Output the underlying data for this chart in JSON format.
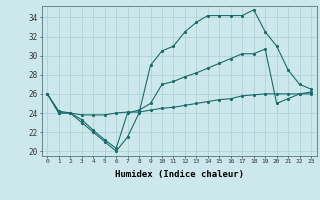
{
  "xlabel": "Humidex (Indice chaleur)",
  "bg_color": "#cce8ec",
  "grid_color": "#aacfd4",
  "line_color": "#1a6b6b",
  "xlim": [
    -0.5,
    23.5
  ],
  "ylim": [
    19.5,
    35.2
  ],
  "xticks": [
    0,
    1,
    2,
    3,
    4,
    5,
    6,
    7,
    8,
    9,
    10,
    11,
    12,
    13,
    14,
    15,
    16,
    17,
    18,
    19,
    20,
    21,
    22,
    23
  ],
  "yticks": [
    20,
    22,
    24,
    26,
    28,
    30,
    32,
    34
  ],
  "series2_x": [
    0,
    1,
    2,
    3,
    4,
    5,
    6,
    7,
    8,
    9,
    10,
    11,
    12,
    13,
    14,
    15,
    16,
    17,
    18,
    19,
    20,
    21,
    22,
    23
  ],
  "series2_y": [
    26,
    24,
    24,
    23,
    22,
    21,
    20,
    21.5,
    24,
    29,
    30.5,
    31,
    32.5,
    33.5,
    34.2,
    34.2,
    34.2,
    34.2,
    34.8,
    32.5,
    31,
    28.5,
    27,
    26.5
  ],
  "series1_x": [
    0,
    1,
    2,
    3,
    4,
    5,
    6,
    7,
    8,
    9,
    10,
    11,
    12,
    13,
    14,
    15,
    16,
    17,
    18,
    19,
    20,
    21,
    22,
    23
  ],
  "series1_y": [
    26,
    24,
    24,
    23.3,
    22.2,
    21.2,
    20.3,
    24,
    24.3,
    25,
    27,
    27.3,
    27.8,
    28.2,
    28.7,
    29.2,
    29.7,
    30.2,
    30.2,
    30.7,
    25,
    25.5,
    26,
    26.2
  ],
  "series3_x": [
    0,
    1,
    2,
    3,
    4,
    5,
    6,
    7,
    8,
    9,
    10,
    11,
    12,
    13,
    14,
    15,
    16,
    17,
    18,
    19,
    20,
    21,
    22,
    23
  ],
  "series3_y": [
    26,
    24.2,
    24.0,
    23.8,
    23.8,
    23.8,
    24.0,
    24.1,
    24.1,
    24.3,
    24.5,
    24.6,
    24.8,
    25.0,
    25.2,
    25.4,
    25.5,
    25.8,
    25.9,
    26.0,
    26.0,
    26.0,
    26.0,
    26.0
  ]
}
